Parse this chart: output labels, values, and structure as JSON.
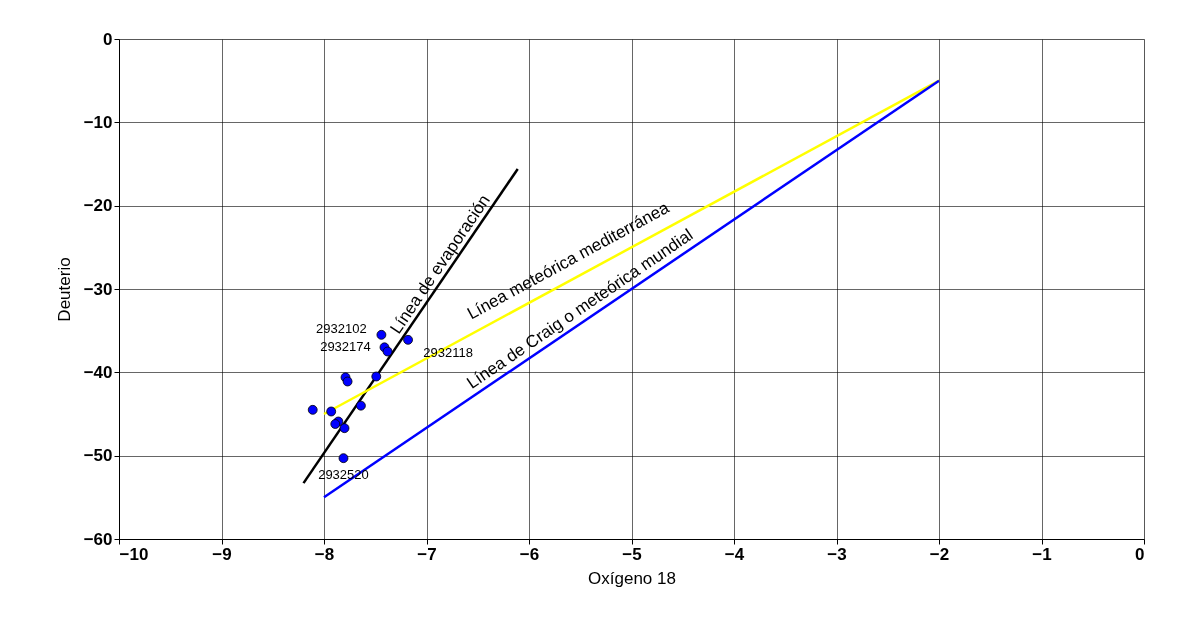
{
  "chart_data": {
    "type": "scatter",
    "xlabel": "Oxígeno 18",
    "ylabel": "Deuterio",
    "xlim": [
      -10,
      0
    ],
    "xticks": [
      -10,
      -9,
      -8,
      -7,
      -6,
      -5,
      -4,
      -3,
      -2,
      -1,
      0
    ],
    "ylim": [
      -60,
      0
    ],
    "yticks": [
      -60,
      -50,
      -40,
      -30,
      -20,
      -10,
      0
    ],
    "grid": true,
    "marker": "circle",
    "series": [
      {
        "color": "#0000ff",
        "x": [
          -7.44,
          -7.41,
          -7.38,
          -7.18,
          -7.79,
          -7.77,
          -7.49,
          -8.11,
          -7.93,
          -7.64,
          -7.86,
          -7.89,
          -7.8,
          -7.81
        ],
        "values": [
          -35.5,
          -37.0,
          -37.5,
          -36.1,
          -40.6,
          -41.1,
          -40.5,
          -44.5,
          -44.7,
          -44.0,
          -45.9,
          -46.2,
          -46.7,
          -50.3
        ]
      },
      {
        "type": "line",
        "marker": "none",
        "line_style": "solid",
        "color": "#000000",
        "x": [
          -8.2,
          -6.11
        ],
        "values": [
          -53.3,
          -15.6
        ]
      },
      {
        "type": "line",
        "marker": "none",
        "line_style": "solid",
        "color": "#ffff00",
        "x": [
          -8.0,
          -2.0
        ],
        "values": [
          -45.0,
          -5.0
        ]
      },
      {
        "type": "line",
        "marker": "none",
        "line_style": "solid",
        "color": "#0000ff",
        "x": [
          -8.0,
          -2.0
        ],
        "values": [
          -55.0,
          -5.0
        ]
      }
    ],
    "annotations": [
      {
        "text": "2932102",
        "x": -7.44,
        "y": -35.5
      },
      {
        "text": "2932174",
        "x": -7.41,
        "y": -37.0
      },
      {
        "text": "2932118",
        "x": -7.18,
        "y": -36.1
      },
      {
        "text": "2932520",
        "x": -7.81,
        "y": -50.3
      },
      {
        "text": "Línea de evaporación",
        "x": -6.7,
        "y": -26.25
      },
      {
        "text": "Línea meteórica mediterránea",
        "x": -5.6,
        "y": -29.0
      },
      {
        "text": "Línea de Craig o meteórica mundial",
        "x": -5.5,
        "y": -34.17
      }
    ]
  }
}
